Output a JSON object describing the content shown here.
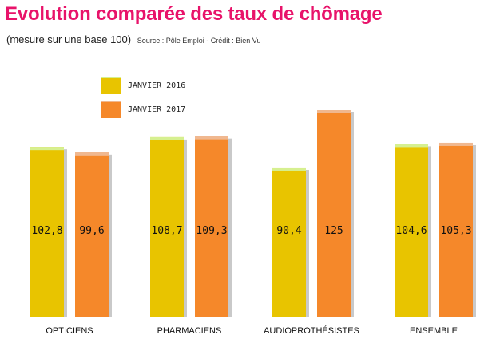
{
  "header": {
    "title": "Evolution comparée des taux de chômage",
    "subtitle": "(mesure sur une base 100)",
    "source": "Source : Pôle Emploi - Crédit : Bien Vu"
  },
  "colors": {
    "series_2016": "#e8c400",
    "series_2016_top": "#d6f090",
    "series_2017": "#f5882a",
    "series_2017_top": "#f0b890"
  },
  "chart_data": {
    "type": "bar",
    "title": "Evolution comparée des taux de chômage",
    "subtitle": "(mesure sur une base 100)",
    "categories": [
      "OPTICIENS",
      "PHARMACIENS",
      "AUDIOPROTHÉSISTES",
      "ENSEMBLE"
    ],
    "series": [
      {
        "name": "JANVIER 2016",
        "values": [
          102.8,
          108.7,
          90.4,
          104.6
        ],
        "labels": [
          "102,8",
          "108,7",
          "90,4",
          "104,6"
        ]
      },
      {
        "name": "JANVIER 2017",
        "values": [
          99.6,
          109.3,
          125,
          105.3
        ],
        "labels": [
          "99,6",
          "109,3",
          "125",
          "105,3"
        ]
      }
    ],
    "ylim": [
      0,
      125
    ],
    "legend": "top-left",
    "grid": false,
    "xlabel": "",
    "ylabel": ""
  }
}
